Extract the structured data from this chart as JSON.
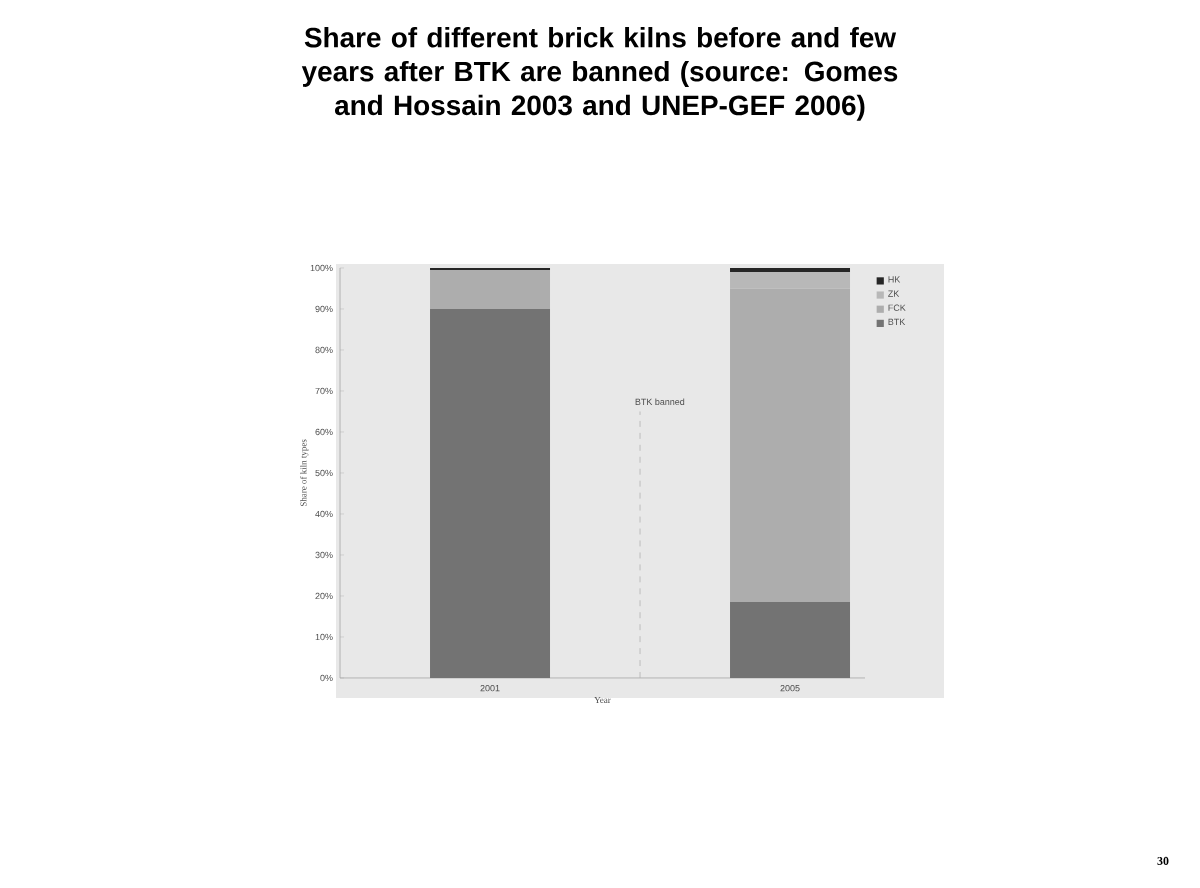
{
  "chart_data": {
    "type": "bar",
    "title": "Share of different brick kilns before and few years after BTK are banned (source: Gomes and Hossain 2003 and UNEP-GEF 2006)",
    "xlabel": "Year",
    "ylabel": "Share of kiln types",
    "categories": [
      "2001",
      null,
      "2005"
    ],
    "stacked": true,
    "series": [
      {
        "name": "BTK",
        "color": "#737373",
        "values": [
          90,
          null,
          18.5
        ]
      },
      {
        "name": "FCK",
        "color": "#adadad",
        "values": [
          9.5,
          null,
          76.5
        ]
      },
      {
        "name": "ZK",
        "color": "#b8b8b8",
        "values": [
          0,
          null,
          4
        ]
      },
      {
        "name": "HK",
        "color": "#262626",
        "values": [
          0.5,
          null,
          1
        ]
      }
    ],
    "ylim": [
      0,
      100
    ],
    "yticks": [
      {
        "value": 0,
        "label": "0%"
      },
      {
        "value": 10,
        "label": "10%"
      },
      {
        "value": 20,
        "label": "20%"
      },
      {
        "value": 30,
        "label": "30%"
      },
      {
        "value": 40,
        "label": "40%"
      },
      {
        "value": 50,
        "label": "50%"
      },
      {
        "value": 60,
        "label": "60%"
      },
      {
        "value": 70,
        "label": "70%"
      },
      {
        "value": 80,
        "label": "80%"
      },
      {
        "value": 90,
        "label": "90%"
      },
      {
        "value": 100,
        "label": "100%"
      }
    ],
    "legend": "right",
    "grid": false,
    "annotations": [
      "BTK banned",
      "30"
    ]
  }
}
